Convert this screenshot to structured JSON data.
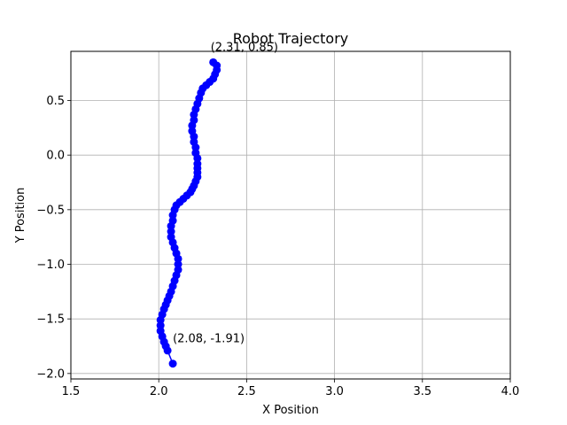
{
  "chart_data": {
    "type": "line",
    "title": "Robot Trajectory",
    "xlabel": "X Position",
    "ylabel": "Y Position",
    "xlim": [
      1.5,
      4.0
    ],
    "ylim": [
      -2.05,
      0.95
    ],
    "xticks": [
      1.5,
      2.0,
      2.5,
      3.0,
      3.5,
      4.0
    ],
    "xtick_labels": [
      "1.5",
      "2.0",
      "2.5",
      "3.0",
      "3.5",
      "4.0"
    ],
    "yticks": [
      -2.0,
      -1.5,
      -1.0,
      -0.5,
      0.0,
      0.5
    ],
    "ytick_labels": [
      "−2.0",
      "−1.5",
      "−1.0",
      "−0.5",
      "0.0",
      "0.5"
    ],
    "grid": true,
    "series": [
      {
        "color": "#0000ff",
        "marker": "circle",
        "x": [
          2.31,
          2.33,
          2.33,
          2.32,
          2.31,
          2.29,
          2.27,
          2.25,
          2.24,
          2.23,
          2.22,
          2.21,
          2.2,
          2.2,
          2.19,
          2.19,
          2.2,
          2.2,
          2.21,
          2.21,
          2.22,
          2.22,
          2.22,
          2.22,
          2.22,
          2.21,
          2.2,
          2.19,
          2.18,
          2.16,
          2.14,
          2.12,
          2.1,
          2.09,
          2.08,
          2.08,
          2.07,
          2.07,
          2.07,
          2.08,
          2.09,
          2.1,
          2.11,
          2.11,
          2.11,
          2.1,
          2.09,
          2.08,
          2.07,
          2.06,
          2.05,
          2.04,
          2.03,
          2.02,
          2.01,
          2.01,
          2.01,
          2.02,
          2.03,
          2.04,
          2.05,
          2.08
        ],
        "y": [
          0.85,
          0.82,
          0.78,
          0.74,
          0.7,
          0.67,
          0.64,
          0.61,
          0.57,
          0.52,
          0.47,
          0.42,
          0.37,
          0.32,
          0.27,
          0.22,
          0.17,
          0.12,
          0.07,
          0.02,
          -0.03,
          -0.08,
          -0.12,
          -0.16,
          -0.2,
          -0.24,
          -0.28,
          -0.31,
          -0.34,
          -0.37,
          -0.4,
          -0.43,
          -0.46,
          -0.5,
          -0.55,
          -0.6,
          -0.65,
          -0.7,
          -0.75,
          -0.8,
          -0.85,
          -0.9,
          -0.95,
          -1.0,
          -1.05,
          -1.1,
          -1.15,
          -1.2,
          -1.25,
          -1.29,
          -1.33,
          -1.37,
          -1.41,
          -1.46,
          -1.51,
          -1.56,
          -1.61,
          -1.66,
          -1.71,
          -1.75,
          -1.79,
          -1.91
        ]
      }
    ],
    "annotations": [
      {
        "text": "(2.31, 0.85)",
        "x": 2.31,
        "y": 0.85
      },
      {
        "text": "(2.08, -1.91)",
        "x": 2.08,
        "y": -1.91
      }
    ]
  }
}
